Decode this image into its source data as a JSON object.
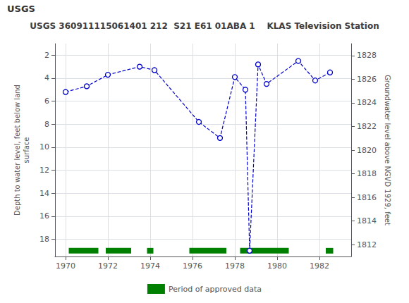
{
  "chart_data": {
    "type": "line",
    "title": "USGS 360911115061401 212  S21 E61 01ABA 1    KLAS Television Station",
    "annotations": [
      "USGS"
    ],
    "ylabel": "Depth to water level, feet below land\nsurface",
    "y2label": "Groundwater level above NGVD 1929, feet",
    "x": [
      1970.0,
      1971.0,
      1972.0,
      1973.5,
      1974.2,
      1976.3,
      1977.3,
      1978.0,
      1978.5,
      1978.7,
      1979.1,
      1979.5,
      1981.0,
      1981.8,
      1982.5
    ],
    "values": [
      5.2,
      4.7,
      3.7,
      3.0,
      3.3,
      7.8,
      9.2,
      3.9,
      5.0,
      19.0,
      2.8,
      4.5,
      2.5,
      4.2,
      3.5
    ],
    "color": "#0000cc",
    "marker": "circle",
    "line_style": "dashed",
    "xlim": [
      1969.5,
      1983.5
    ],
    "xticks": [
      1970,
      1972,
      1974,
      1976,
      1978,
      1980,
      1982
    ],
    "ylim": [
      19.5,
      1.0
    ],
    "yticks": [
      2,
      4,
      6,
      8,
      10,
      12,
      14,
      16,
      18
    ],
    "y2lim": [
      1811.0,
      1829.0
    ],
    "y2ticks": [
      1812,
      1814,
      1816,
      1818,
      1820,
      1822,
      1824,
      1826,
      1828
    ],
    "grid": true,
    "legend": "bottom",
    "approved_periods": {
      "name": "Period of approved data",
      "color": "#008000",
      "y": 19.0,
      "ranges": [
        [
          1970.15,
          1971.55
        ],
        [
          1971.9,
          1973.1
        ],
        [
          1973.85,
          1974.15
        ],
        [
          1975.85,
          1977.6
        ],
        [
          1978.25,
          1980.55
        ],
        [
          1982.3,
          1982.65
        ]
      ]
    }
  }
}
